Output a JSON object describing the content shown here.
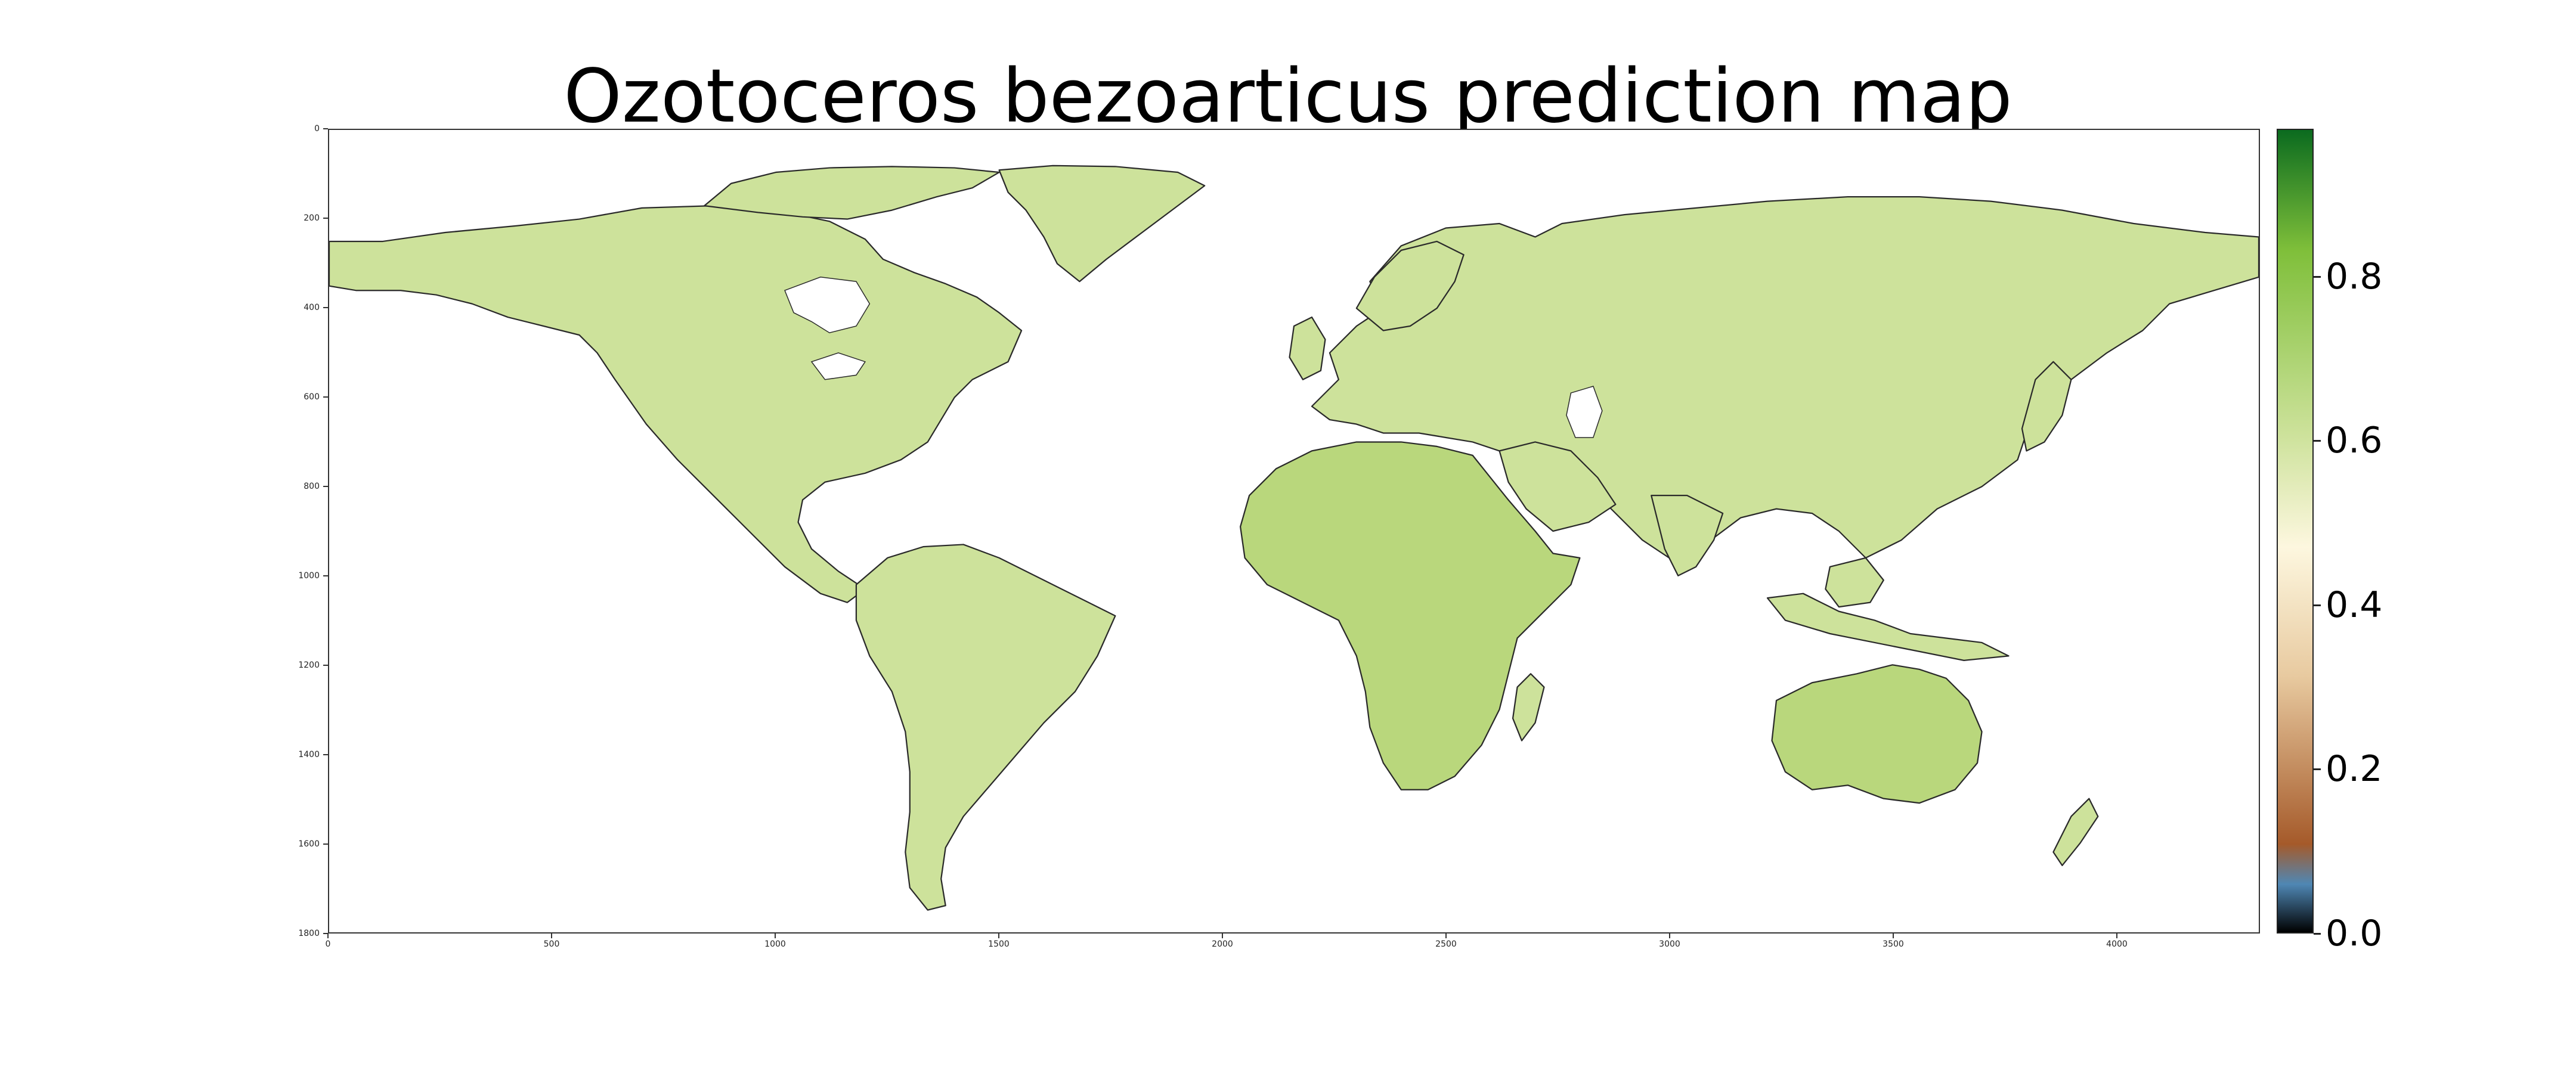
{
  "title": "Ozotoceros bezoarticus prediction map",
  "axes": {
    "x_ticks": [
      "0",
      "500",
      "1000",
      "1500",
      "2000",
      "2500",
      "3000",
      "3500",
      "4000"
    ],
    "x_values": [
      0,
      500,
      1000,
      1500,
      2000,
      2500,
      3000,
      3500,
      4000
    ],
    "y_ticks": [
      "0",
      "200",
      "400",
      "600",
      "800",
      "1000",
      "1200",
      "1400",
      "1600",
      "1800"
    ],
    "y_values": [
      0,
      200,
      400,
      600,
      800,
      1000,
      1200,
      1400,
      1600,
      1800
    ],
    "x_range": [
      0,
      4320
    ],
    "y_range": [
      0,
      1800
    ]
  },
  "colorbar": {
    "ticks": [
      "0.0",
      "0.2",
      "0.4",
      "0.6",
      "0.8"
    ],
    "tick_values": [
      0.0,
      0.2,
      0.4,
      0.6,
      0.8
    ],
    "range": [
      0.0,
      0.98
    ],
    "colors": {
      "low": "#000000",
      "blue": "#4f87b4",
      "brown": "#a55a2a",
      "tan": "#e8caa0",
      "cream": "#fdf7df",
      "light_green": "#cde29b",
      "green": "#7fbf3a",
      "high": "#0b6b1f"
    }
  },
  "map_colors": {
    "land": "#cde29b",
    "land_dark": "#b9d77c",
    "coast": "#2a2a2a",
    "water": "#ffffff"
  }
}
